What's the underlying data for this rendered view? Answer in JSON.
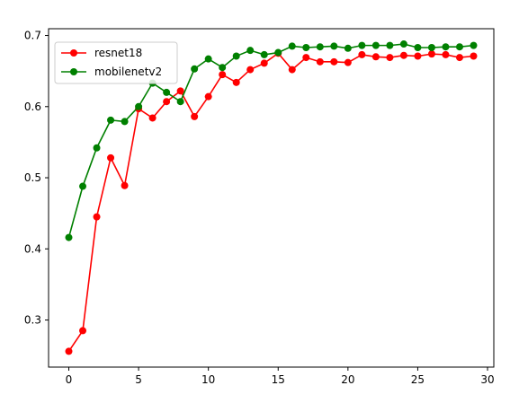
{
  "chart_data": {
    "type": "line",
    "title": "",
    "xlabel": "",
    "ylabel": "",
    "xlim": [
      -1.45,
      30.45
    ],
    "ylim": [
      0.2338,
      0.7095
    ],
    "xticks": [
      0,
      5,
      10,
      15,
      20,
      25,
      30
    ],
    "yticks": [
      0.3,
      0.4,
      0.5,
      0.6,
      0.7
    ],
    "xtick_labels": [
      "0",
      "5",
      "10",
      "15",
      "20",
      "25",
      "30"
    ],
    "ytick_labels": [
      "0.3",
      "0.4",
      "0.5",
      "0.6",
      "0.7"
    ],
    "grid": false,
    "legend": "top-left",
    "x": [
      0,
      1,
      2,
      3,
      4,
      5,
      6,
      7,
      8,
      9,
      10,
      11,
      12,
      13,
      14,
      15,
      16,
      17,
      18,
      19,
      20,
      21,
      22,
      23,
      24,
      25,
      26,
      27,
      28,
      29
    ],
    "series": [
      {
        "name": "resnet18",
        "color": "#ff0000",
        "values": [
          0.256,
          0.285,
          0.445,
          0.528,
          0.489,
          0.597,
          0.584,
          0.607,
          0.622,
          0.586,
          0.614,
          0.645,
          0.634,
          0.652,
          0.661,
          0.675,
          0.652,
          0.669,
          0.663,
          0.663,
          0.662,
          0.673,
          0.67,
          0.669,
          0.672,
          0.671,
          0.674,
          0.673,
          0.669,
          0.671
        ]
      },
      {
        "name": "mobilenetv2",
        "color": "#008000",
        "values": [
          0.416,
          0.488,
          0.542,
          0.581,
          0.579,
          0.6,
          0.633,
          0.62,
          0.607,
          0.653,
          0.667,
          0.655,
          0.671,
          0.679,
          0.673,
          0.676,
          0.685,
          0.683,
          0.684,
          0.685,
          0.682,
          0.686,
          0.686,
          0.686,
          0.688,
          0.683,
          0.683,
          0.684,
          0.684,
          0.686
        ]
      }
    ]
  }
}
